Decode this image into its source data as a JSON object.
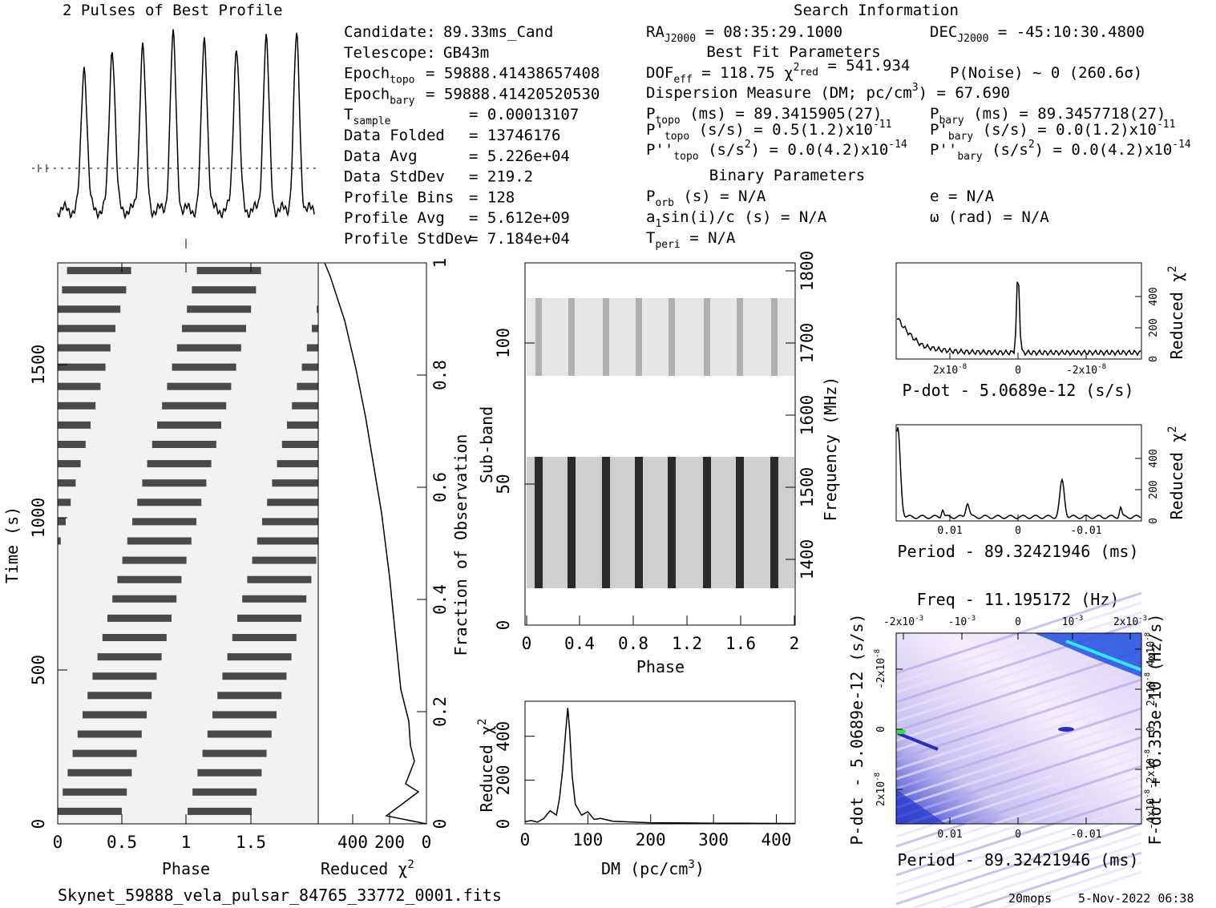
{
  "chart_data": {
    "type": "pulsar_fold_diagnostics",
    "title": "2 Pulses of Best Profile",
    "search_title": "Search Information",
    "filename": "Skynet_59888_vela_pulsar_84765_33772_0001.fits",
    "footer_user": "20mops",
    "footer_date": "5-Nov-2022 06:38",
    "info_left": [
      {
        "label": "Candidate:",
        "value": "89.33ms_Cand"
      },
      {
        "label": "Telescope:",
        "value": "GB43m"
      },
      {
        "label": "Epoch",
        "sub": "topo",
        "value": "= 59888.41438657408"
      },
      {
        "label": "Epoch",
        "sub": "bary",
        "value": "= 59888.41420520530"
      },
      {
        "label": "T",
        "sub": "sample",
        "value": "=   0.00013107"
      },
      {
        "label": "Data Folded",
        "value": "=   13746176"
      },
      {
        "label": "Data Avg",
        "value": "=   5.226e+04"
      },
      {
        "label": "Data StdDev",
        "value": "=   219.2"
      },
      {
        "label": "Profile Bins",
        "value": "=   128"
      },
      {
        "label": "Profile Avg",
        "value": "=   5.612e+09"
      },
      {
        "label": "Profile StdDev",
        "value": "=   7.184e+04"
      }
    ],
    "info_mid": {
      "ra": "RA",
      "ra_sub": "J2000",
      "ra_val": "= 08:35:29.1000",
      "dec": "DEC",
      "dec_sub": "J2000",
      "dec_val": "= -45:10:30.4800",
      "best_fit": "Best Fit Parameters",
      "dof": "DOF",
      "dof_sub": "eff",
      "dof_val": "= 118.75",
      "chi": "χ",
      "chi_sup": "2",
      "chi_sub": "red",
      "chi_val": "= 541.934",
      "pnoise": "P(Noise) ~ 0    (260.6σ)",
      "dm_line": "Dispersion Measure (DM; pc/cm",
      "dm_sup": "3",
      "dm_val": ") = 67.690",
      "ptopo": "P",
      "ptopo_sub": "topo",
      "ptopo_val": "(ms) =  89.3415905(27)",
      "pbary": "P",
      "pbary_sub": "bary",
      "pbary_val": "(ms) =  89.3457718(27)",
      "pdtopo": "P'",
      "pdtopo_sub": "topo",
      "pdtopo_val": "(s/s) =  0.5(1.2)x10",
      "pdtopo_exp": "-11",
      "pdbary": "P'",
      "pdbary_sub": "bary",
      "pdbary_val": "(s/s) = 0.0(1.2)x10",
      "pdbary_exp": "-11",
      "pddtopo": "P''",
      "pddtopo_sub": "topo",
      "pddtopo_val": "(s/s",
      "pddtopo_sup": "2",
      "pddtopo_val2": ") = 0.0(4.2)x10",
      "pddtopo_exp": "-14",
      "pddbary": "P''",
      "pddbary_sub": "bary",
      "pddbary_val": "(s/s",
      "pddbary_sup": "2",
      "pddbary_val2": ") = 0.0(4.2)x10",
      "pddbary_exp": "-14",
      "binary": "Binary Parameters",
      "porb": "P",
      "porb_sub": "orb",
      "porb_val": "(s) = N/A",
      "ecc": "e = N/A",
      "asini": "a",
      "asini_sub": "1",
      "asini_val": "sin(i)/c (s) = N/A",
      "omega": "ω (rad) = N/A",
      "tperi": "T",
      "tperi_sub": "peri",
      "tperi_val": "= N/A"
    },
    "time_phase": {
      "xlabel": "Phase",
      "ylabel": "Time (s)",
      "xticks": [
        "0",
        "0.5",
        "1",
        "1.5"
      ],
      "yticks": [
        "0",
        "500",
        "1000",
        "1500"
      ],
      "xlim": [
        0,
        2
      ],
      "ylim": [
        0,
        1830
      ]
    },
    "time_chi": {
      "xlabel": "Reduced χ",
      "xlabel_sup": "2",
      "ylabel": "Fraction of Observation",
      "xticks": [
        "400",
        "200",
        "0"
      ],
      "yticks": [
        "0",
        "0.2",
        "0.4",
        "0.6",
        "0.8",
        "1"
      ],
      "xlim": [
        540,
        0
      ]
    },
    "subband": {
      "xlabel": "Phase",
      "ylabel": "Sub-band",
      "ylabel2": "Frequency (MHz)",
      "xticks": [
        "0",
        "0.4",
        "0.8",
        "1.2",
        "1.6",
        "2"
      ],
      "yticks": [
        "0",
        "50",
        "100"
      ],
      "yticks2": [
        "1400",
        "1500",
        "1600",
        "1700",
        "1800"
      ]
    },
    "dm_plot": {
      "xlabel": "DM (pc/cm",
      "xlabel_sup": "3",
      "xlabel_end": ")",
      "ylabel": "Reduced χ",
      "ylabel_sup": "2",
      "xticks": [
        "0",
        "100",
        "200",
        "300",
        "400"
      ],
      "yticks": [
        "0",
        "200",
        "400"
      ],
      "x": [
        0,
        10,
        20,
        30,
        40,
        50,
        55,
        60,
        65,
        68,
        71,
        75,
        80,
        90,
        100,
        110,
        120,
        140,
        170,
        200,
        250,
        300,
        350,
        400,
        430
      ],
      "y": [
        10,
        15,
        8,
        25,
        60,
        40,
        120,
        250,
        430,
        530,
        430,
        220,
        90,
        40,
        55,
        20,
        25,
        12,
        8,
        5,
        4,
        3,
        3,
        2,
        2
      ],
      "xlim": [
        0,
        430
      ],
      "ylim": [
        0,
        560
      ]
    },
    "pdot_plot": {
      "xlabel": "P-dot - 5.0689e-12 (s/s)",
      "ylabel": "Reduced χ",
      "ylabel_sup": "2",
      "xticks": [
        "2x10",
        "0",
        "-2x10"
      ],
      "xtick_exp": "-8",
      "yticks": [
        "0",
        "200",
        "400"
      ]
    },
    "period_plot": {
      "xlabel": "Period - 89.32421946 (ms)",
      "ylabel": "Reduced χ",
      "ylabel_sup": "2",
      "xticks": [
        "0.01",
        "0",
        "-0.01"
      ],
      "yticks": [
        "0",
        "200",
        "400"
      ]
    },
    "ppdot_plot": {
      "title": "Freq - 11.195172 (Hz)",
      "xlabel": "Period - 89.32421946 (ms)",
      "ylabel": "P-dot - 5.0689e-12 (s/s)",
      "ylabel2": "F-dot + 6.353e-10 (Hz/s)",
      "xticks": [
        "0.01",
        "0",
        "-0.01"
      ],
      "topticks": [
        "-2x10",
        "-10",
        "0",
        "10",
        "2x10"
      ],
      "toptick_exp": "-3",
      "yticks": [
        "2x10",
        "0",
        "-2x10"
      ],
      "ytick_exp": "-8",
      "rticks": [
        "-4x10",
        "-2x10",
        "0",
        "2x10",
        "4x10"
      ],
      "rtick_exp": "-8"
    }
  }
}
